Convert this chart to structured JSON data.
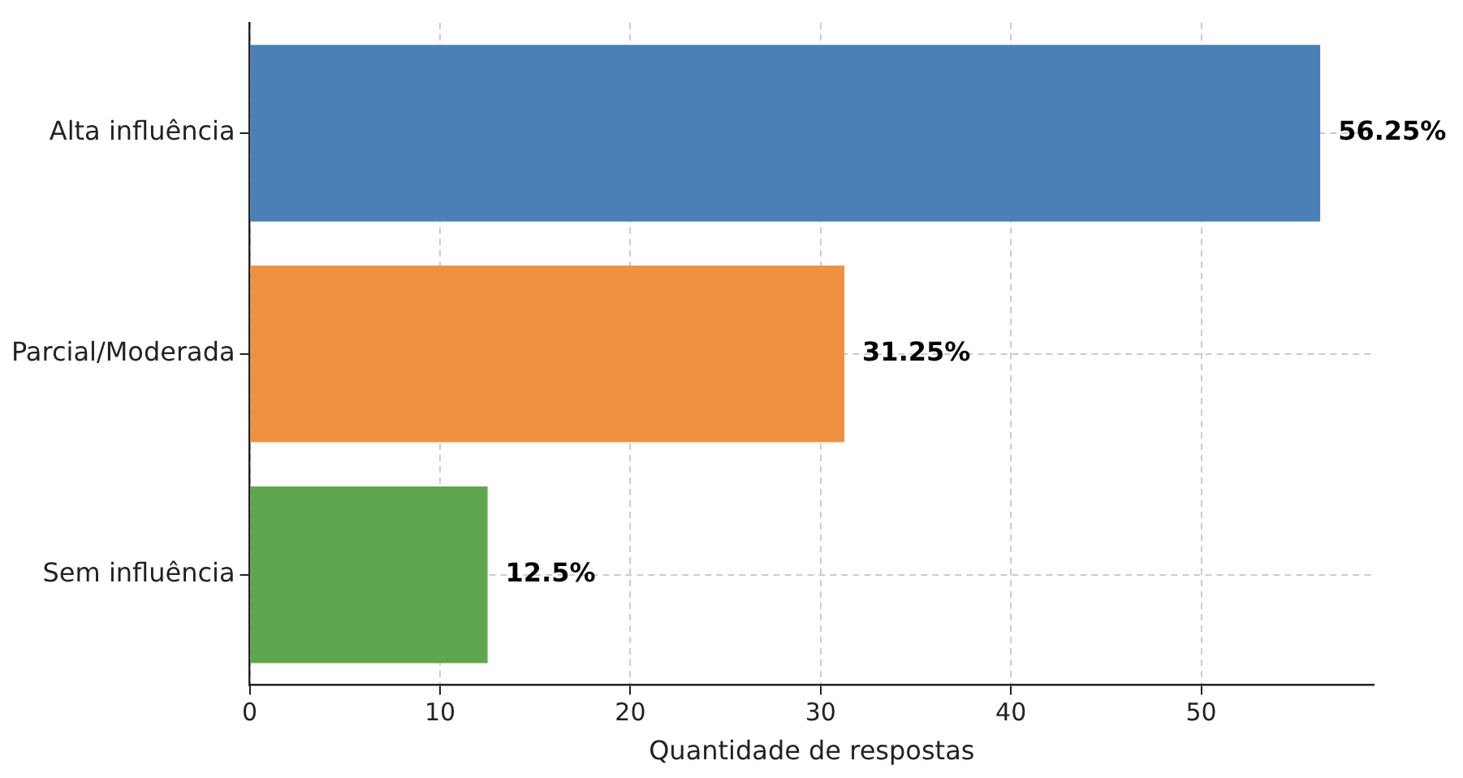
{
  "chart_data": {
    "type": "bar",
    "orientation": "horizontal",
    "xlabel": "Quantidade de respostas",
    "categories": [
      "Alta influência",
      "Parcial/Moderada",
      "Sem influência"
    ],
    "values": [
      56.25,
      31.25,
      12.5
    ],
    "colors": [
      "#4a80b4",
      "#f09142",
      "#5ea64f"
    ],
    "value_labels": [
      "56.25%",
      "31.25%",
      "12.5%"
    ],
    "xlim": [
      0,
      59.06
    ],
    "xticks": [
      0,
      10,
      20,
      30,
      40,
      50
    ],
    "grid": true,
    "legend": false
  }
}
